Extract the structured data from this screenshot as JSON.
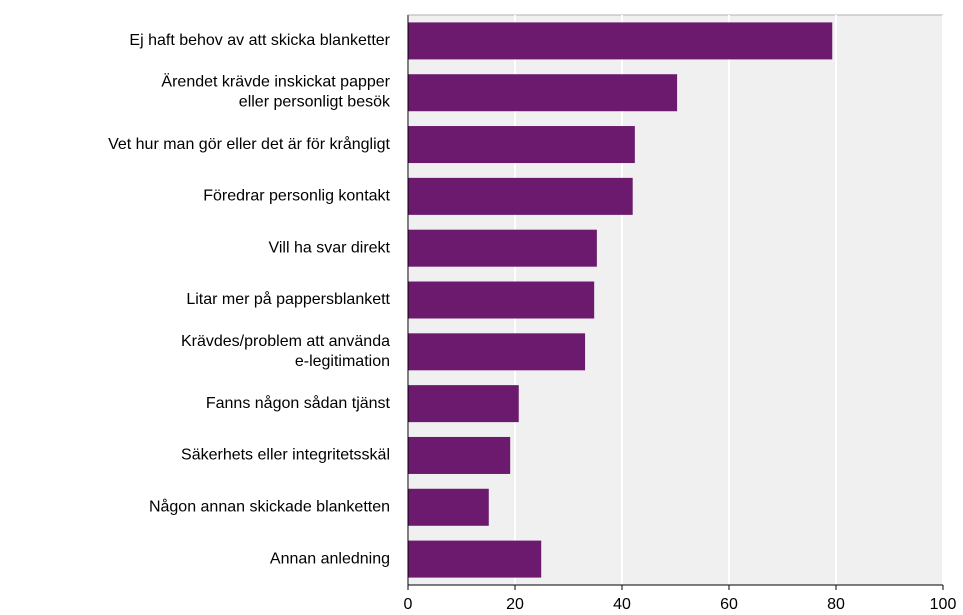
{
  "chart_data": {
    "type": "barh",
    "categories": [
      "Ej haft behov av att skicka blanketter",
      "Ärendet krävde inskickat papper\neller personligt besök",
      "Vet hur man gör eller det är för krångligt",
      "Föredrar personlig kontakt",
      "Vill ha svar direkt",
      "Litar mer på pappersblankett",
      "Krävdes/problem att använda\ne-legitimation",
      "Fanns någon sådan tjänst",
      "Säkerhets eller integritetsskäl",
      "Någon annan skickade blanketten",
      "Annan anledning"
    ],
    "values": [
      79.3,
      50.3,
      42.4,
      42,
      35.3,
      34.8,
      33.1,
      20.7,
      19.1,
      15.1,
      24.9
    ],
    "color": "#6b1a6e",
    "xlim": [
      0,
      100
    ],
    "xticks": [
      0,
      20,
      40,
      60,
      80,
      100
    ],
    "grid": true
  }
}
